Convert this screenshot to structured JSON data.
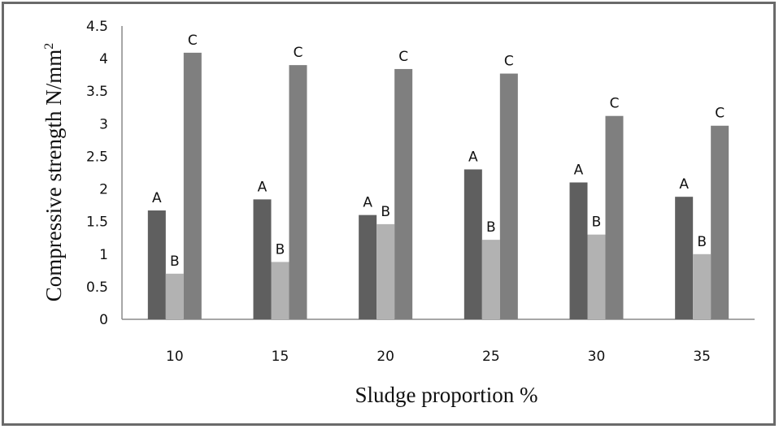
{
  "chart_data": {
    "type": "bar",
    "categories": [
      "10",
      "15",
      "20",
      "25",
      "30",
      "35"
    ],
    "series": [
      {
        "values": [
          1.67,
          1.84,
          1.6,
          2.3,
          2.1,
          1.88
        ],
        "color": "#5f5f5f"
      },
      {
        "values": [
          0.7,
          0.88,
          1.46,
          1.22,
          1.3,
          1.0
        ],
        "color": "#b2b2b2"
      },
      {
        "values": [
          4.09,
          3.9,
          3.84,
          3.77,
          3.12,
          2.97
        ],
        "color": "#7f7f7f"
      }
    ],
    "data_labels": [
      [
        "A",
        "A",
        "A",
        "A",
        "A",
        "A"
      ],
      [
        "B",
        "B",
        "B",
        "B",
        "B",
        "B"
      ],
      [
        "C",
        "C",
        "C",
        "C",
        "C",
        "C"
      ]
    ],
    "xlabel": "Sludge proportion %",
    "ylabel": "Compressive strength N/mm",
    "ylabel_superscript": "2",
    "ylim": [
      0,
      4.5
    ],
    "yticks": [
      "0",
      "0.5",
      "1",
      "1.5",
      "2",
      "2.5",
      "3",
      "3.5",
      "4",
      "4.5"
    ],
    "grid": false,
    "legend": "none"
  }
}
